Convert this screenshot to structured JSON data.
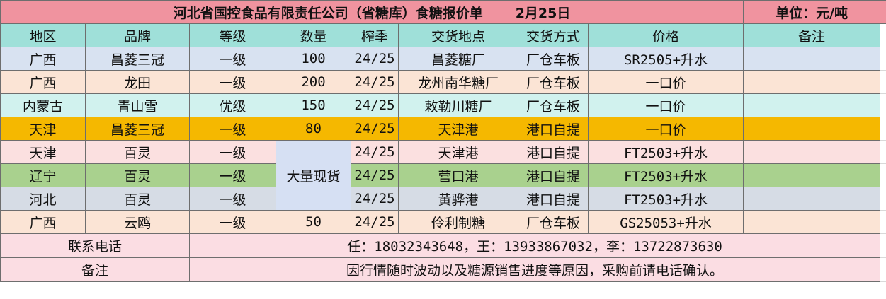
{
  "title": {
    "main": "河北省国控食品有限责任公司（省糖库）食糖报价单",
    "date": "2月25日",
    "unit": "单位：元/吨"
  },
  "headers": [
    "地区",
    "品牌",
    "等级",
    "数量",
    "榨季",
    "交货地点",
    "交货方式",
    "价格",
    "备注"
  ],
  "rows": [
    {
      "region": "广西",
      "brand": "昌菱三冠",
      "grade": "一级",
      "qty": "100",
      "season": "24/25",
      "place": "昌菱糖厂",
      "mode": "厂仓车板",
      "price": "SR2505+升水",
      "note": ""
    },
    {
      "region": "广西",
      "brand": "龙田",
      "grade": "一级",
      "qty": "200",
      "season": "24/25",
      "place": "龙州南华糖厂",
      "mode": "厂仓车板",
      "price": "一口价",
      "note": ""
    },
    {
      "region": "内蒙古",
      "brand": "青山雪",
      "grade": "优级",
      "qty": "150",
      "season": "24/25",
      "place": "敕勒川糖厂",
      "mode": "厂仓车板",
      "price": "一口价",
      "note": ""
    },
    {
      "region": "天津",
      "brand": "昌菱三冠",
      "grade": "一级",
      "qty": "80",
      "season": "24/25",
      "place": "天津港",
      "mode": "港口自提",
      "price": "一口价",
      "note": ""
    },
    {
      "region": "天津",
      "brand": "百灵",
      "grade": "一级",
      "qty": "大量现货",
      "season": "24/25",
      "place": "天津港",
      "mode": "港口自提",
      "price": "FT2503+升水",
      "note": ""
    },
    {
      "region": "辽宁",
      "brand": "百灵",
      "grade": "一级",
      "qty": "",
      "season": "24/25",
      "place": "营口港",
      "mode": "港口自提",
      "price": "FT2503+升水",
      "note": ""
    },
    {
      "region": "河北",
      "brand": "百灵",
      "grade": "一级",
      "qty": "",
      "season": "24/25",
      "place": "黄骅港",
      "mode": "港口自提",
      "price": "FT2503+升水",
      "note": ""
    },
    {
      "region": "广西",
      "brand": "云鸥",
      "grade": "一级",
      "qty": "50",
      "season": "24/25",
      "place": "伶利制糖",
      "mode": "厂仓车板",
      "price": "GS25053+升水",
      "note": ""
    }
  ],
  "footer": {
    "contact_label": "联系电话",
    "contact_value": "任：18032343648，王：13933867032，李：13722873630",
    "note_label": "备注",
    "note_value": "因行情随时波动以及糖源销售进度等原因，采购前请电话确认。"
  }
}
